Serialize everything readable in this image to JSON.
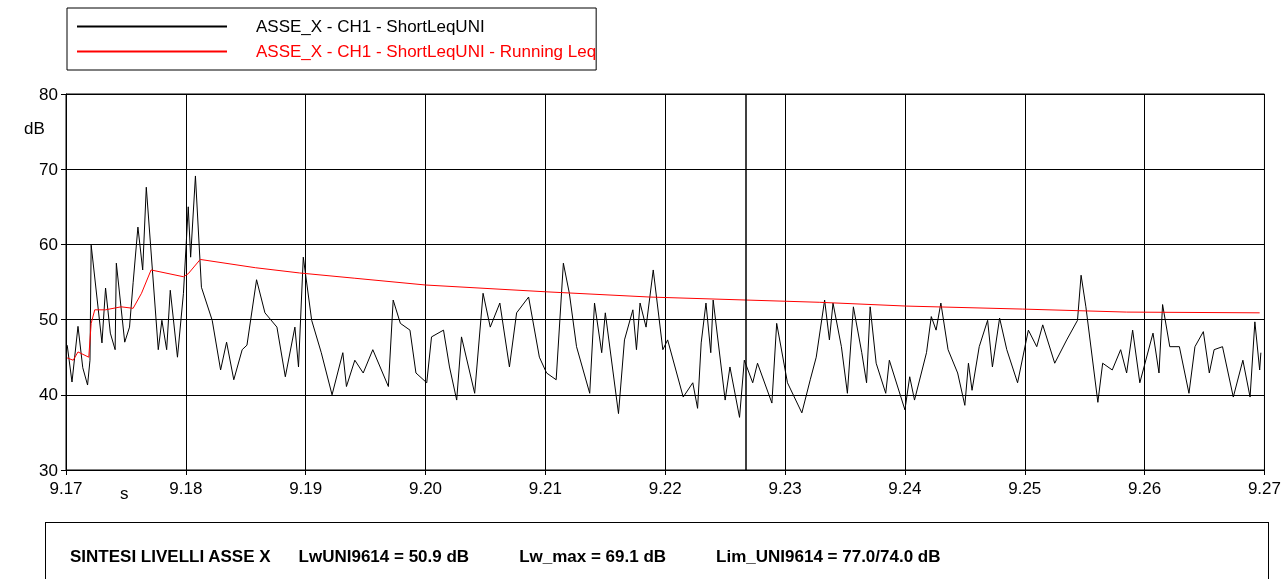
{
  "chart_data": {
    "type": "line",
    "xlabel": "s",
    "ylabel": "dB",
    "xlim": [
      9.17,
      9.27
    ],
    "xticks": [
      9.17,
      9.18,
      9.19,
      {
        "value": 9.2,
        "label": "9.20"
      },
      9.21,
      9.22,
      9.23,
      9.24,
      9.25,
      9.26,
      9.27
    ],
    "ylim": [
      30,
      80
    ],
    "yticks": [
      30,
      40,
      50,
      60,
      70,
      80
    ],
    "grid": true,
    "legend": "top",
    "marker": "none",
    "line_style": "solid",
    "series": [
      {
        "name": "ASSE_X - CH1 - ShortLeqUNI",
        "color": "#000000",
        "x": [
          9.1701,
          9.1705,
          9.171,
          9.1714,
          9.1718,
          9.172,
          9.1721,
          9.173,
          9.1733,
          9.1737,
          9.1741,
          9.1742,
          9.1749,
          9.1753,
          9.1756,
          9.176,
          9.1764,
          9.1767,
          9.1777,
          9.178,
          9.1784,
          9.1787,
          9.1793,
          9.1798,
          9.1802,
          9.1804,
          9.1808,
          9.1813,
          9.1822,
          9.1829,
          9.1834,
          9.184,
          9.1847,
          9.1851,
          9.1859,
          9.1866,
          9.1876,
          9.1883,
          9.1891,
          9.1894,
          9.1898,
          9.1905,
          9.1913,
          9.1922,
          9.1931,
          9.1934,
          9.1941,
          9.1948,
          9.1956,
          9.1969,
          9.1973,
          9.1979,
          9.1987,
          9.1992,
          9.2001,
          9.2005,
          9.2015,
          9.202,
          9.2026,
          9.203,
          9.2041,
          9.2048,
          9.2054,
          9.2062,
          9.207,
          9.2076,
          9.2086,
          9.2095,
          9.2101,
          9.2109,
          9.2115,
          9.212,
          9.2126,
          9.2137,
          9.2141,
          9.2147,
          9.215,
          9.2161,
          9.2166,
          9.2173,
          9.2176,
          9.2179,
          9.2184,
          9.219,
          9.2198,
          9.2202,
          9.2215,
          9.2223,
          9.2227,
          9.223,
          9.2234,
          9.2238,
          9.224,
          9.225,
          9.2254,
          9.2262,
          9.2266,
          9.2273,
          9.2277,
          9.2289,
          9.2293,
          9.2302,
          9.2314,
          9.2321,
          9.2326,
          9.2333,
          9.2337,
          9.234,
          9.2347,
          9.2352,
          9.2357,
          9.2364,
          9.2368,
          9.2371,
          9.2376,
          9.2384,
          9.2387,
          9.24,
          9.2404,
          9.2408,
          9.2418,
          9.2422,
          9.2426,
          9.243,
          9.2436,
          9.2444,
          9.245,
          9.2453,
          9.2456,
          9.2462,
          9.2469,
          9.2473,
          9.2479,
          9.2485,
          9.2494,
          9.2503,
          9.251,
          9.2515,
          9.2525,
          9.2535,
          9.2544,
          9.2547,
          9.2551,
          9.2561,
          9.2565,
          9.2573,
          9.258,
          9.2585,
          9.259,
          9.2596,
          9.2607,
          9.2612,
          9.2615,
          9.2621,
          9.2629,
          9.2637,
          9.2642,
          9.2649,
          9.2654,
          9.2658,
          9.2665,
          9.2674,
          9.2682,
          9.2688,
          9.2692,
          9.2696,
          9.2697
        ],
        "values": [
          46.6,
          41.7,
          49.1,
          43.6,
          41.3,
          44.6,
          59.9,
          46.9,
          54.2,
          48.2,
          46.0,
          57.5,
          47.0,
          49.0,
          54.9,
          62.3,
          56.6,
          67.6,
          46.0,
          49.9,
          46.0,
          53.9,
          45.0,
          53.5,
          65.0,
          58.3,
          69.1,
          54.3,
          49.9,
          43.3,
          47.0,
          42.0,
          46.0,
          46.6,
          55.3,
          50.9,
          49.0,
          42.4,
          49.0,
          43.7,
          58.3,
          49.9,
          45.6,
          40.0,
          45.6,
          41.1,
          44.6,
          42.9,
          46.0,
          41.1,
          52.6,
          49.5,
          48.6,
          42.9,
          41.6,
          47.7,
          48.6,
          43.7,
          39.3,
          47.7,
          40.2,
          53.5,
          49.0,
          52.2,
          43.7,
          50.9,
          53.0,
          45.0,
          42.9,
          42.0,
          57.5,
          53.5,
          46.4,
          40.2,
          52.2,
          45.6,
          50.9,
          37.5,
          47.3,
          51.3,
          46.0,
          52.2,
          49.0,
          56.6,
          46.0,
          47.3,
          39.7,
          41.6,
          38.2,
          46.9,
          52.2,
          45.6,
          52.6,
          39.3,
          43.7,
          37.0,
          44.6,
          41.6,
          44.2,
          38.9,
          49.5,
          41.6,
          37.6,
          42.0,
          45.0,
          52.6,
          47.3,
          52.2,
          46.4,
          40.2,
          51.7,
          45.6,
          41.6,
          51.7,
          44.2,
          40.2,
          44.6,
          38.0,
          42.4,
          39.3,
          45.6,
          50.4,
          48.6,
          52.2,
          46.0,
          42.9,
          38.6,
          44.2,
          40.6,
          46.4,
          49.9,
          43.7,
          50.2,
          46.0,
          41.6,
          48.6,
          46.4,
          49.3,
          44.2,
          47.3,
          49.9,
          55.9,
          51.7,
          39.0,
          44.2,
          43.3,
          46.0,
          42.9,
          48.6,
          41.6,
          48.2,
          42.9,
          52.0,
          46.4,
          46.4,
          40.2,
          46.4,
          48.4,
          42.9,
          46.0,
          46.4,
          39.7,
          44.6,
          39.7,
          49.7,
          43.3,
          45.6
        ]
      },
      {
        "name": "ASSE_X - CH1 - ShortLeqUNI - Running Leq",
        "color": "#ff0000",
        "x": [
          9.1701,
          9.1706,
          9.171,
          9.1719,
          9.1721,
          9.1724,
          9.1733,
          9.1746,
          9.1756,
          9.1763,
          9.1771,
          9.1798,
          9.1802,
          9.1812,
          9.1858,
          9.1895,
          9.1941,
          9.2,
          9.21,
          9.2187,
          9.2268,
          9.2329,
          9.2401,
          9.2498,
          9.2585,
          9.2696
        ],
        "values": [
          44.9,
          44.6,
          45.7,
          45.0,
          49.5,
          51.3,
          51.3,
          51.7,
          51.5,
          53.5,
          56.6,
          55.7,
          56.1,
          58.0,
          56.9,
          56.2,
          55.5,
          54.6,
          53.7,
          53.0,
          52.6,
          52.3,
          51.8,
          51.4,
          51.0,
          50.9
        ]
      }
    ],
    "ref_lines": [
      {
        "axis": "x",
        "value": 9.2267,
        "color": "#000000"
      }
    ],
    "annotations": [
      "SINTESI LIVELLI ASSE X",
      "LwUNI9614 = 50.9 dB",
      "Lw_max = 69.1 dB",
      "Lim_UNI9614 = 77.0/74.0 dB"
    ]
  }
}
